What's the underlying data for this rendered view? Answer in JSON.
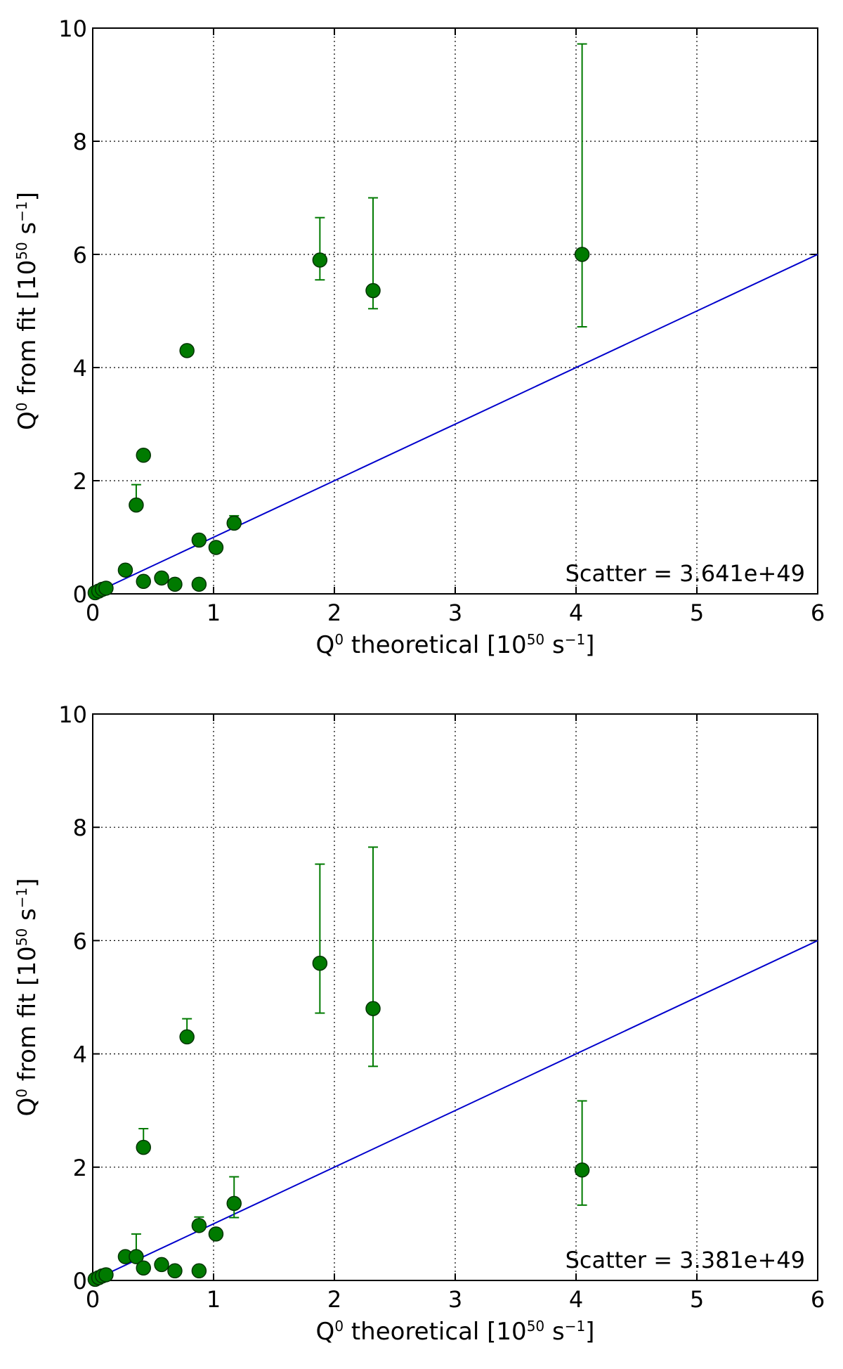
{
  "chart_data": [
    {
      "type": "scatter",
      "xlabel_main": "Q",
      "xlabel_sup": "0",
      "xlabel_rest": " theoretical [10",
      "xlabel_exp": "50",
      "xlabel_unit": " s",
      "xlabel_unit_exp": "−1",
      "xlabel_close": "]",
      "ylabel_main": "Q",
      "ylabel_sup": "0",
      "ylabel_rest": " from fit [10",
      "ylabel_exp": "50",
      "ylabel_unit": " s",
      "ylabel_unit_exp": "−1",
      "ylabel_close": "]",
      "xlim": [
        0,
        6
      ],
      "ylim": [
        0,
        10
      ],
      "xticks": [
        "0",
        "1",
        "2",
        "3",
        "4",
        "5",
        "6"
      ],
      "yticks": [
        "0",
        "2",
        "4",
        "6",
        "8",
        "10"
      ],
      "grid": true,
      "annotation": "Scatter =  3.641e+49",
      "line": {
        "x": [
          0,
          6
        ],
        "y": [
          0,
          6
        ],
        "color": "#0000cc"
      },
      "points": [
        {
          "x": 0.02,
          "y": 0.02,
          "err_lo": 0,
          "err_hi": 0
        },
        {
          "x": 0.05,
          "y": 0.05,
          "err_lo": 0,
          "err_hi": 0
        },
        {
          "x": 0.08,
          "y": 0.08,
          "err_lo": 0,
          "err_hi": 0
        },
        {
          "x": 0.11,
          "y": 0.1,
          "err_lo": 0,
          "err_hi": 0
        },
        {
          "x": 0.27,
          "y": 0.42,
          "err_lo": 0,
          "err_hi": 0
        },
        {
          "x": 0.36,
          "y": 1.57,
          "err_lo": 0,
          "err_hi": 0.36
        },
        {
          "x": 0.42,
          "y": 2.45,
          "err_lo": 0,
          "err_hi": 0
        },
        {
          "x": 0.42,
          "y": 0.22,
          "err_lo": 0,
          "err_hi": 0
        },
        {
          "x": 0.57,
          "y": 0.28,
          "err_lo": 0,
          "err_hi": 0
        },
        {
          "x": 0.68,
          "y": 0.17,
          "err_lo": 0,
          "err_hi": 0
        },
        {
          "x": 0.78,
          "y": 4.3,
          "err_lo": 0,
          "err_hi": 0
        },
        {
          "x": 0.88,
          "y": 0.95,
          "err_lo": 0,
          "err_hi": 0
        },
        {
          "x": 0.88,
          "y": 0.17,
          "err_lo": 0,
          "err_hi": 0
        },
        {
          "x": 1.02,
          "y": 0.82,
          "err_lo": 0,
          "err_hi": 0
        },
        {
          "x": 1.17,
          "y": 1.25,
          "err_lo": 0,
          "err_hi": 0.13
        },
        {
          "x": 1.88,
          "y": 5.9,
          "err_lo": 0.35,
          "err_hi": 0.75
        },
        {
          "x": 2.32,
          "y": 5.36,
          "err_lo": 0.32,
          "err_hi": 1.64
        },
        {
          "x": 4.05,
          "y": 6.0,
          "err_lo": 1.28,
          "err_hi": 3.72
        }
      ]
    },
    {
      "type": "scatter",
      "xlabel_main": "Q",
      "xlabel_sup": "0",
      "xlabel_rest": " theoretical [10",
      "xlabel_exp": "50",
      "xlabel_unit": " s",
      "xlabel_unit_exp": "−1",
      "xlabel_close": "]",
      "ylabel_main": "Q",
      "ylabel_sup": "0",
      "ylabel_rest": " from fit [10",
      "ylabel_exp": "50",
      "ylabel_unit": " s",
      "ylabel_unit_exp": "−1",
      "ylabel_close": "]",
      "xlim": [
        0,
        6
      ],
      "ylim": [
        0,
        10
      ],
      "xticks": [
        "0",
        "1",
        "2",
        "3",
        "4",
        "5",
        "6"
      ],
      "yticks": [
        "0",
        "2",
        "4",
        "6",
        "8",
        "10"
      ],
      "grid": true,
      "annotation": "Scatter =  3.381e+49",
      "line": {
        "x": [
          0,
          6
        ],
        "y": [
          0,
          6
        ],
        "color": "#0000cc"
      },
      "points": [
        {
          "x": 0.02,
          "y": 0.02,
          "err_lo": 0,
          "err_hi": 0
        },
        {
          "x": 0.05,
          "y": 0.05,
          "err_lo": 0,
          "err_hi": 0
        },
        {
          "x": 0.08,
          "y": 0.08,
          "err_lo": 0,
          "err_hi": 0
        },
        {
          "x": 0.11,
          "y": 0.1,
          "err_lo": 0,
          "err_hi": 0
        },
        {
          "x": 0.27,
          "y": 0.42,
          "err_lo": 0,
          "err_hi": 0
        },
        {
          "x": 0.36,
          "y": 0.42,
          "err_lo": 0,
          "err_hi": 0.4
        },
        {
          "x": 0.42,
          "y": 2.35,
          "err_lo": 0,
          "err_hi": 0.33
        },
        {
          "x": 0.42,
          "y": 0.22,
          "err_lo": 0,
          "err_hi": 0
        },
        {
          "x": 0.57,
          "y": 0.28,
          "err_lo": 0,
          "err_hi": 0
        },
        {
          "x": 0.68,
          "y": 0.17,
          "err_lo": 0,
          "err_hi": 0
        },
        {
          "x": 0.78,
          "y": 4.3,
          "err_lo": 0,
          "err_hi": 0.32
        },
        {
          "x": 0.88,
          "y": 0.97,
          "err_lo": 0,
          "err_hi": 0.15
        },
        {
          "x": 0.88,
          "y": 0.17,
          "err_lo": 0,
          "err_hi": 0
        },
        {
          "x": 1.02,
          "y": 0.82,
          "err_lo": 0,
          "err_hi": 0
        },
        {
          "x": 1.17,
          "y": 1.36,
          "err_lo": 0.25,
          "err_hi": 0.47
        },
        {
          "x": 1.88,
          "y": 5.6,
          "err_lo": 0.88,
          "err_hi": 1.75
        },
        {
          "x": 2.32,
          "y": 4.8,
          "err_lo": 1.02,
          "err_hi": 2.85
        },
        {
          "x": 4.05,
          "y": 1.95,
          "err_lo": 0.62,
          "err_hi": 1.22
        }
      ]
    }
  ]
}
